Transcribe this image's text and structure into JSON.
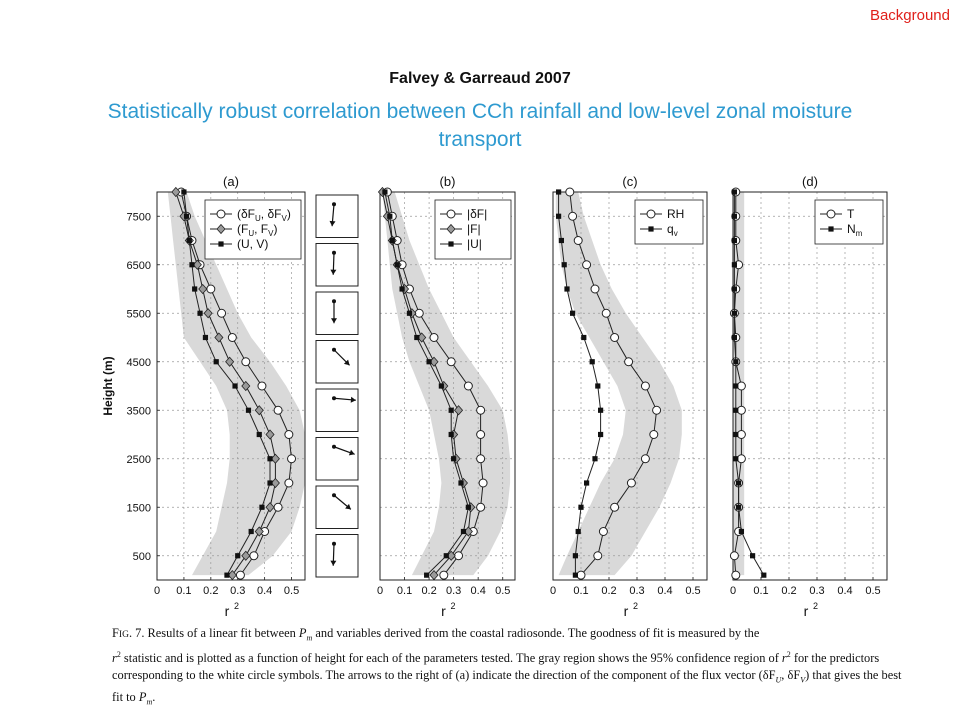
{
  "slide": {
    "tag": "Background",
    "author_line": "Falvey & Garreaud 2007",
    "title": "Statistically robust correlation between CCh rainfall and low-level zonal moisture transport"
  },
  "chart_data": [
    {
      "type": "line",
      "panel_label": "(a)",
      "ylabel": "Height (m)",
      "xlabel": "r²",
      "xlim": [
        0,
        0.55
      ],
      "ylim": [
        0,
        8000
      ],
      "xticks": [
        "0",
        "0.1",
        "0.2",
        "0.3",
        "0.4",
        "0.5"
      ],
      "yticks": [
        "500",
        "1500",
        "2500",
        "3500",
        "4500",
        "5500",
        "6500",
        "7500"
      ],
      "legend_position": "top-right",
      "grid": true,
      "heights": [
        100,
        500,
        1000,
        1500,
        2000,
        2500,
        3000,
        3500,
        4000,
        4500,
        5000,
        5500,
        6000,
        6500,
        7000,
        7500,
        8000
      ],
      "confidence_band": {
        "low": [
          0.13,
          0.17,
          0.22,
          0.24,
          0.26,
          0.27,
          0.27,
          0.26,
          0.22,
          0.16,
          0.1,
          0.09,
          0.08,
          0.07,
          0.06,
          0.05,
          0.04
        ],
        "high": [
          0.34,
          0.43,
          0.5,
          0.53,
          0.55,
          0.55,
          0.55,
          0.53,
          0.48,
          0.42,
          0.35,
          0.3,
          0.26,
          0.22,
          0.18,
          0.14,
          0.11
        ]
      },
      "series": [
        {
          "name": "(δF_U, δF_V)",
          "marker": "circle",
          "values": [
            0.31,
            0.36,
            0.4,
            0.45,
            0.49,
            0.5,
            0.49,
            0.45,
            0.39,
            0.33,
            0.28,
            0.24,
            0.2,
            0.16,
            0.13,
            0.11,
            0.09
          ]
        },
        {
          "name": "(F_U, F_V)",
          "marker": "diamond",
          "values": [
            0.28,
            0.33,
            0.38,
            0.42,
            0.44,
            0.44,
            0.42,
            0.38,
            0.33,
            0.27,
            0.23,
            0.19,
            0.17,
            0.15,
            0.12,
            0.1,
            0.07
          ]
        },
        {
          "name": "(U, V)",
          "marker": "square",
          "values": [
            0.26,
            0.3,
            0.35,
            0.39,
            0.42,
            0.42,
            0.38,
            0.34,
            0.29,
            0.22,
            0.18,
            0.16,
            0.14,
            0.13,
            0.12,
            0.11,
            0.1
          ]
        }
      ]
    },
    {
      "type": "arrows",
      "panel_label": "",
      "description_source": "direction of component of flux vector",
      "heights": [
        7500,
        6500,
        5500,
        4500,
        3500,
        2500,
        1500,
        500
      ],
      "angles_deg": [
        -95,
        -92,
        -90,
        -45,
        -5,
        -20,
        -40,
        -92
      ]
    },
    {
      "type": "line",
      "panel_label": "(b)",
      "xlabel": "r²",
      "xlim": [
        0,
        0.55
      ],
      "ylim": [
        0,
        8000
      ],
      "xticks": [
        "0",
        "0.1",
        "0.2",
        "0.3",
        "0.4",
        "0.5"
      ],
      "legend_position": "top-right",
      "grid": true,
      "heights": [
        100,
        500,
        1000,
        1500,
        2000,
        2500,
        3000,
        3500,
        4000,
        4500,
        5000,
        5500,
        6000,
        6500,
        7000,
        7500,
        8000
      ],
      "confidence_band": {
        "low": [
          0.13,
          0.17,
          0.22,
          0.24,
          0.25,
          0.24,
          0.22,
          0.2,
          0.16,
          0.12,
          0.09,
          0.07,
          0.05,
          0.04,
          0.03,
          0.02,
          0.01
        ],
        "high": [
          0.38,
          0.44,
          0.49,
          0.52,
          0.53,
          0.53,
          0.52,
          0.5,
          0.44,
          0.37,
          0.3,
          0.25,
          0.2,
          0.16,
          0.12,
          0.09,
          0.06
        ]
      },
      "series": [
        {
          "name": "|δF|",
          "marker": "circle",
          "values": [
            0.26,
            0.32,
            0.38,
            0.41,
            0.42,
            0.41,
            0.41,
            0.41,
            0.36,
            0.29,
            0.22,
            0.16,
            0.12,
            0.09,
            0.07,
            0.05,
            0.03
          ]
        },
        {
          "name": "|F|",
          "marker": "diamond",
          "values": [
            0.22,
            0.29,
            0.36,
            0.37,
            0.34,
            0.31,
            0.3,
            0.32,
            0.26,
            0.22,
            0.17,
            0.13,
            0.1,
            0.07,
            0.05,
            0.03,
            0.01
          ]
        },
        {
          "name": "|U|",
          "marker": "square",
          "values": [
            0.19,
            0.27,
            0.34,
            0.36,
            0.33,
            0.3,
            0.29,
            0.29,
            0.25,
            0.2,
            0.15,
            0.12,
            0.09,
            0.07,
            0.05,
            0.04,
            0.02
          ]
        }
      ]
    },
    {
      "type": "line",
      "panel_label": "(c)",
      "xlabel": "r²",
      "xlim": [
        0,
        0.55
      ],
      "ylim": [
        0,
        8000
      ],
      "xticks": [
        "0",
        "0.1",
        "0.2",
        "0.3",
        "0.4",
        "0.5"
      ],
      "legend_position": "top-right",
      "grid": true,
      "heights": [
        100,
        500,
        1000,
        1500,
        2000,
        2500,
        3000,
        3500,
        4000,
        4500,
        5000,
        5500,
        6000,
        6500,
        7000,
        7500,
        8000
      ],
      "confidence_band": {
        "low": [
          0.02,
          0.05,
          0.09,
          0.13,
          0.17,
          0.22,
          0.25,
          0.26,
          0.23,
          0.18,
          0.13,
          0.08,
          0.05,
          0.03,
          0.02,
          0.01,
          0.01
        ],
        "high": [
          0.22,
          0.28,
          0.33,
          0.38,
          0.42,
          0.45,
          0.46,
          0.46,
          0.43,
          0.38,
          0.32,
          0.26,
          0.21,
          0.17,
          0.14,
          0.11,
          0.09
        ]
      },
      "series": [
        {
          "name": "RH",
          "marker": "circle",
          "values": [
            0.1,
            0.16,
            0.18,
            0.22,
            0.28,
            0.33,
            0.36,
            0.37,
            0.33,
            0.27,
            0.22,
            0.19,
            0.15,
            0.12,
            0.09,
            0.07,
            0.06
          ]
        },
        {
          "name": "q_v",
          "marker": "square",
          "values": [
            0.08,
            0.08,
            0.09,
            0.1,
            0.12,
            0.15,
            0.17,
            0.17,
            0.16,
            0.14,
            0.11,
            0.07,
            0.05,
            0.04,
            0.03,
            0.02,
            0.02
          ]
        }
      ]
    },
    {
      "type": "line",
      "panel_label": "(d)",
      "xlabel": "r²",
      "xlim": [
        0,
        0.55
      ],
      "ylim": [
        0,
        8000
      ],
      "xticks": [
        "0",
        "0.1",
        "0.2",
        "0.3",
        "0.4",
        "0.5"
      ],
      "legend_position": "top-right",
      "grid": true,
      "heights": [
        100,
        500,
        1000,
        1500,
        2000,
        2500,
        3000,
        3500,
        4000,
        4500,
        5000,
        5500,
        6000,
        6500,
        7000,
        7500,
        8000
      ],
      "confidence_band": {
        "low": [
          0,
          0,
          0,
          0,
          0,
          0,
          0,
          0,
          0,
          0,
          0,
          0,
          0,
          0,
          0,
          0,
          0
        ],
        "high": [
          0.04,
          0.04,
          0.04,
          0.04,
          0.04,
          0.04,
          0.04,
          0.04,
          0.04,
          0.04,
          0.04,
          0.04,
          0.04,
          0.04,
          0.04,
          0.04,
          0.04
        ]
      },
      "series": [
        {
          "name": "T",
          "marker": "circle",
          "values": [
            0.01,
            0.005,
            0.02,
            0.02,
            0.02,
            0.03,
            0.03,
            0.03,
            0.03,
            0.01,
            0.01,
            0.005,
            0.01,
            0.02,
            0.01,
            0.01,
            0.01
          ]
        },
        {
          "name": "N_m",
          "marker": "square",
          "values": [
            0.11,
            0.07,
            0.03,
            0.02,
            0.02,
            0.01,
            0.01,
            0.01,
            0.01,
            0.01,
            0.005,
            0.005,
            0.005,
            0.005,
            0.005,
            0.005,
            0.005
          ]
        }
      ]
    }
  ],
  "caption": {
    "lead": "F",
    "lead_small": "IG",
    "text_1": ". 7. Results of a linear fit between ",
    "pm": "P",
    "pm_sub": "m",
    "text_2": " and variables derived from the coastal radiosonde. The goodness of fit is measured by the ",
    "r2": "r",
    "r2_sup": "2",
    "text_3": " statistic and is plotted as a function of height for each of the parameters tested. The gray region shows the 95% confidence region of ",
    "text_4": " for the predictors corresponding to the white circle symbols. The arrows to the right of (a) indicate the direction of the component of the flux vector (δF",
    "sub_u": "U",
    "text_5": ", δF",
    "sub_v": "V",
    "text_6": ") that gives the best fit to ",
    "text_7": "."
  }
}
